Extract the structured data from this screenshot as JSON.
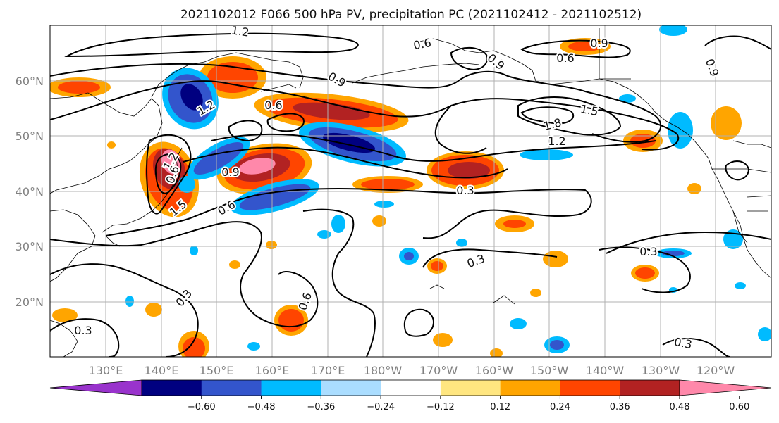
{
  "title": "2021102012 F066 500 hPa PV, precipitation PC (2021102412 - 2021102512)",
  "map": {
    "lon_ticks": [
      "130°E",
      "140°E",
      "150°E",
      "160°E",
      "170°E",
      "180°W",
      "170°W",
      "160°W",
      "150°W",
      "140°W",
      "130°W",
      "120°W"
    ],
    "lat_ticks": [
      "60°N",
      "50°N",
      "40°N",
      "30°N",
      "20°N"
    ],
    "grid": true
  },
  "contour_labels": [
    "1.2",
    "0.6",
    "0.9",
    "1.2",
    "0.6",
    "0.9",
    "1.8",
    "1.5",
    "1.2",
    "0.9",
    "0.6",
    "0.9",
    "1.2",
    "1.5",
    "0.9",
    "0.6",
    "0.3",
    "0.3",
    "0.3",
    "0.3",
    "0.6",
    "0.3",
    "0.3",
    "0.9",
    "0.6"
  ],
  "colorbar": {
    "ticks": [
      "−0.60",
      "−0.48",
      "−0.36",
      "−0.24",
      "−0.12",
      "0.12",
      "0.24",
      "0.36",
      "0.48",
      "0.60"
    ],
    "colors": [
      "#9933cc",
      "#000080",
      "#3355cc",
      "#00bbff",
      "#aaddff",
      "#ffffff",
      "#ffe680",
      "#ffa500",
      "#ff4500",
      "#b22222",
      "#ff88aa"
    ]
  }
}
